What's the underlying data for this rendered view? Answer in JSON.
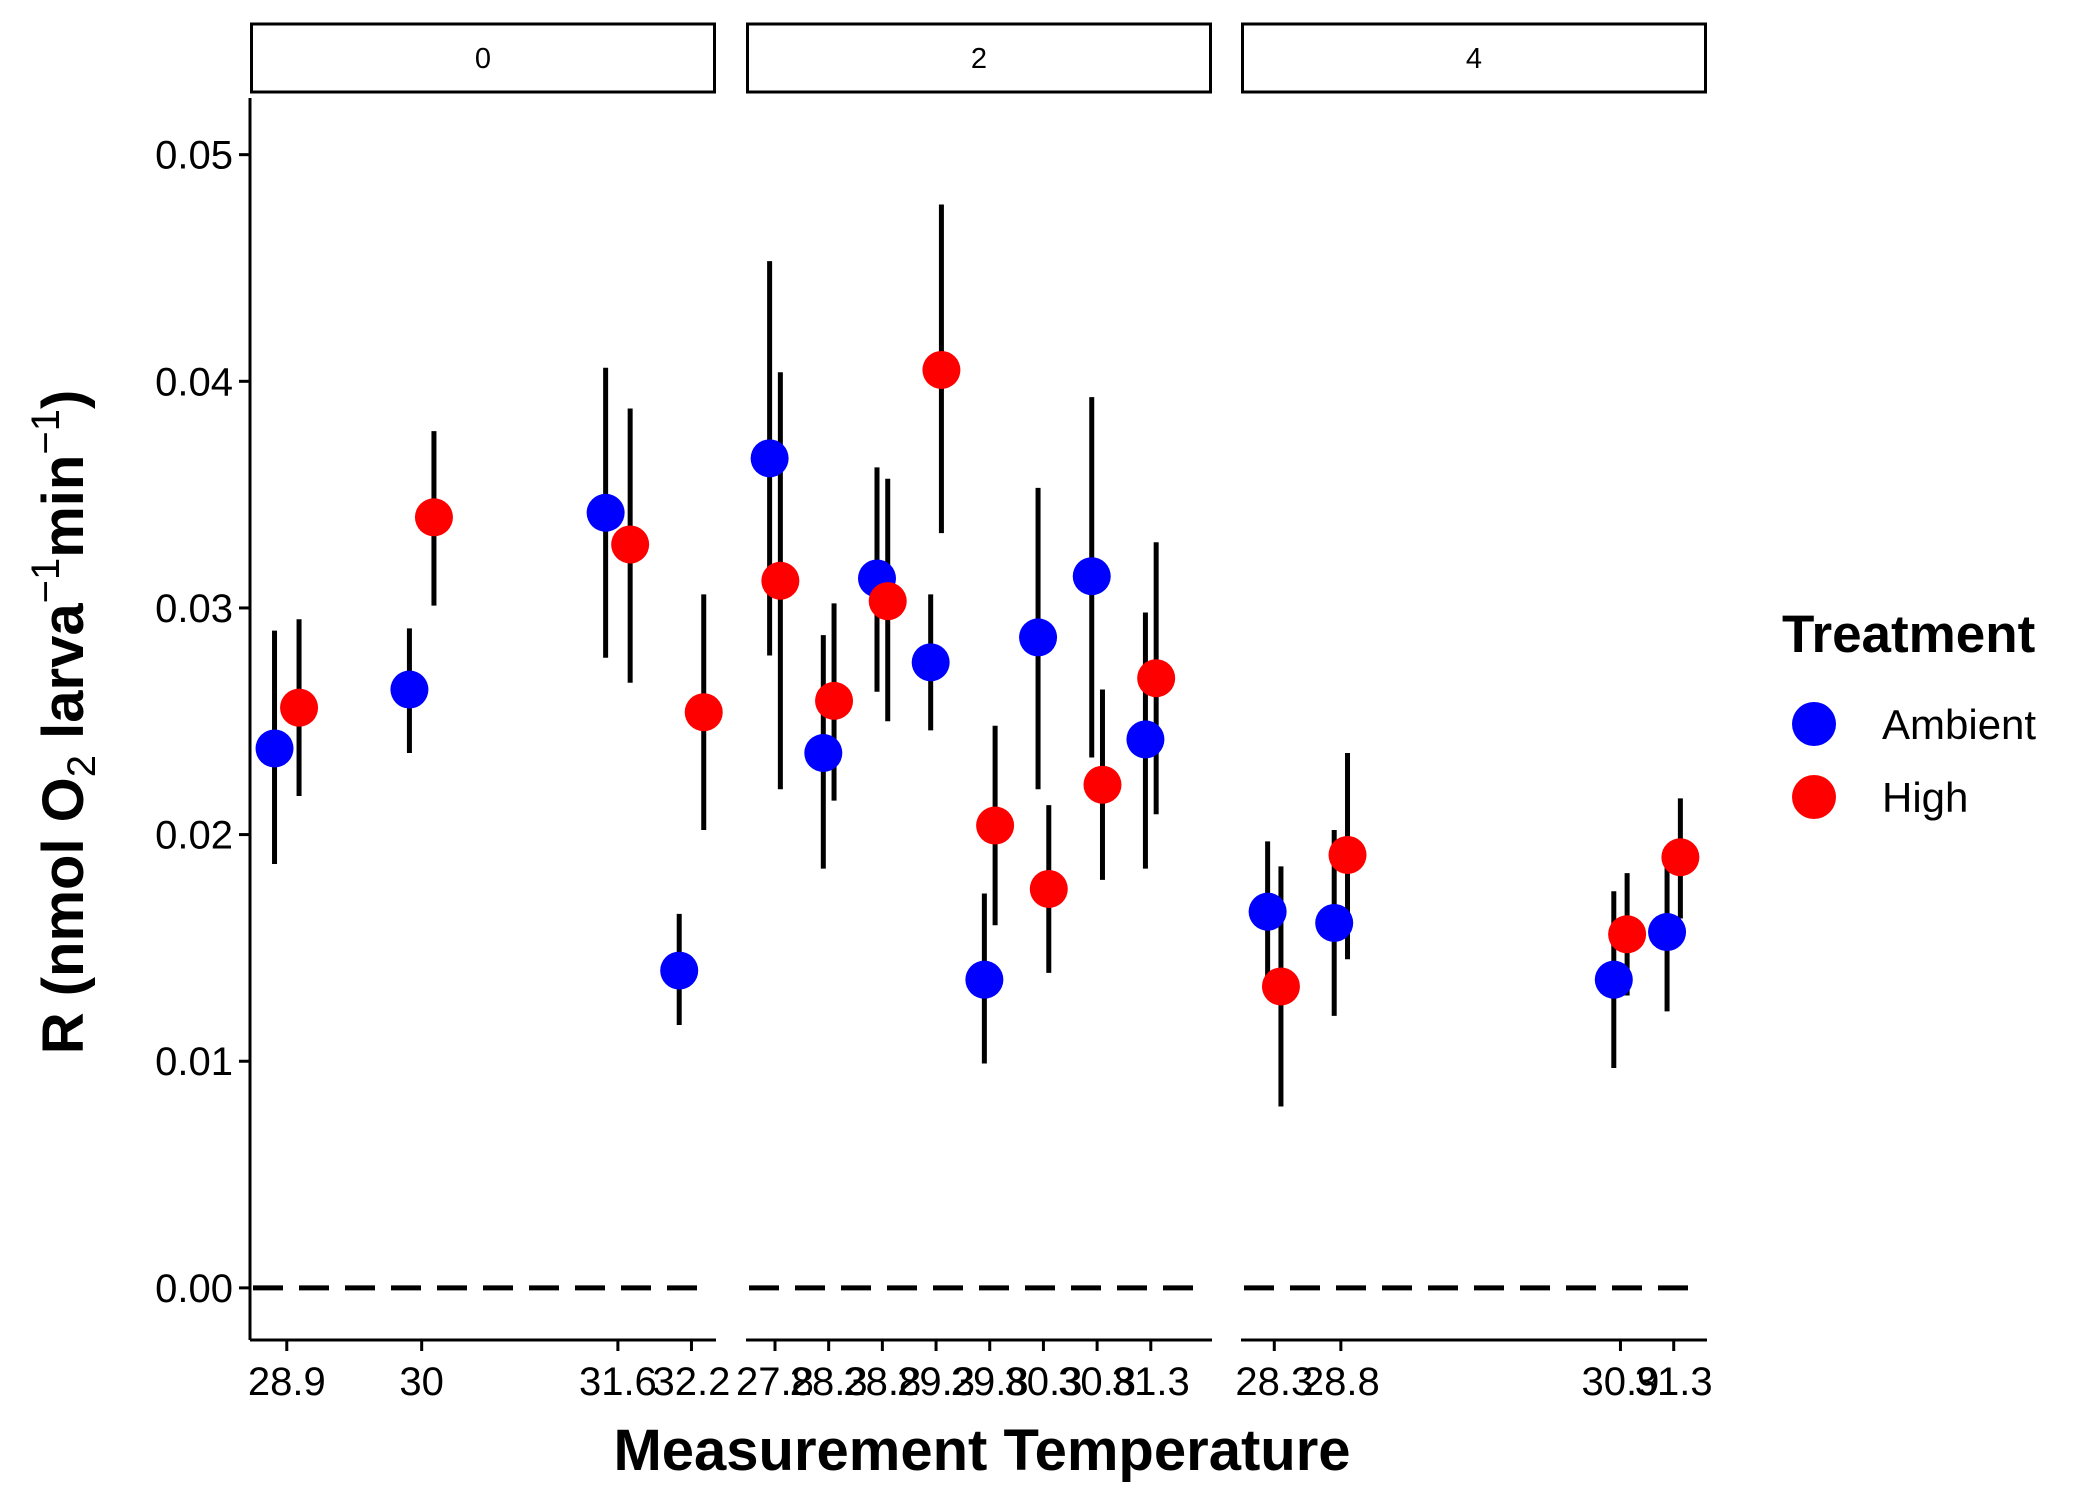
{
  "chart_data": {
    "type": "scatter",
    "xlabel": "Measurement Temperature",
    "ylabel": {
      "prefix": "R (nmol O",
      "o2_subscript": "2",
      "mid": " larva",
      "larva_superscript": "−1",
      "min_text": "min",
      "min_superscript": "−1",
      "suffix": ")"
    },
    "ylim": [
      -0.0023,
      0.0525
    ],
    "y_ticks": [
      "0.00",
      "0.01",
      "0.02",
      "0.03",
      "0.04",
      "0.05"
    ],
    "y_tick_values": [
      0,
      0.01,
      0.02,
      0.03,
      0.04,
      0.05
    ],
    "reference_line": {
      "y": 0,
      "style": "dashed"
    },
    "grid": false,
    "legend": {
      "title": "Treatment",
      "position": "right",
      "entries": [
        {
          "label": "Ambient",
          "color": "#0000ff"
        },
        {
          "label": "High",
          "color": "#ff0000"
        }
      ]
    },
    "series_colors": {
      "Ambient": "#0000ff",
      "High": "#ff0000"
    },
    "facets": [
      {
        "label": "0",
        "xlim": [
          28.6,
          32.4
        ],
        "x_ticks": [
          28.9,
          30,
          31.6,
          32.2
        ],
        "x_tick_labels": [
          "28.9",
          "30",
          "31.6",
          "32.2"
        ],
        "points": [
          {
            "treatment": "Ambient",
            "x": 28.8,
            "y": 0.0238,
            "ymin": 0.0187,
            "ymax": 0.029
          },
          {
            "treatment": "High",
            "x": 29.0,
            "y": 0.0256,
            "ymin": 0.0217,
            "ymax": 0.0295
          },
          {
            "treatment": "Ambient",
            "x": 29.9,
            "y": 0.0264,
            "ymin": 0.0236,
            "ymax": 0.0291
          },
          {
            "treatment": "High",
            "x": 30.1,
            "y": 0.034,
            "ymin": 0.0301,
            "ymax": 0.0378
          },
          {
            "treatment": "Ambient",
            "x": 31.5,
            "y": 0.0342,
            "ymin": 0.0278,
            "ymax": 0.0406
          },
          {
            "treatment": "High",
            "x": 31.7,
            "y": 0.0328,
            "ymin": 0.0267,
            "ymax": 0.0388
          },
          {
            "treatment": "Ambient",
            "x": 32.1,
            "y": 0.014,
            "ymin": 0.0116,
            "ymax": 0.0165
          },
          {
            "treatment": "High",
            "x": 32.3,
            "y": 0.0254,
            "ymin": 0.0202,
            "ymax": 0.0306
          }
        ]
      },
      {
        "label": "2",
        "xlim": [
          27.53,
          31.87
        ],
        "x_ticks": [
          27.8,
          28.3,
          28.8,
          29.3,
          29.8,
          30.3,
          30.8,
          31.3
        ],
        "x_tick_labels": [
          "27.8",
          "28.3",
          "28.8",
          "29.3",
          "29.8",
          "30.3",
          "30.8",
          "31.3"
        ],
        "x_tick_labels_visible": [
          "27.8",
          "28.3",
          "28.8",
          "29.3",
          "29.8",
          "30.3",
          "30.8",
          "31.3"
        ],
        "points": [
          {
            "treatment": "Ambient",
            "x": 27.75,
            "y": 0.0366,
            "ymin": 0.0279,
            "ymax": 0.0453
          },
          {
            "treatment": "High",
            "x": 27.85,
            "y": 0.0312,
            "ymin": 0.022,
            "ymax": 0.0404
          },
          {
            "treatment": "Ambient",
            "x": 28.25,
            "y": 0.0236,
            "ymin": 0.0185,
            "ymax": 0.0288
          },
          {
            "treatment": "High",
            "x": 28.35,
            "y": 0.0259,
            "ymin": 0.0215,
            "ymax": 0.0302
          },
          {
            "treatment": "Ambient",
            "x": 28.75,
            "y": 0.0313,
            "ymin": 0.0263,
            "ymax": 0.0362
          },
          {
            "treatment": "High",
            "x": 28.85,
            "y": 0.0303,
            "ymin": 0.025,
            "ymax": 0.0357
          },
          {
            "treatment": "Ambient",
            "x": 29.25,
            "y": 0.0276,
            "ymin": 0.0246,
            "ymax": 0.0306
          },
          {
            "treatment": "High",
            "x": 29.35,
            "y": 0.0405,
            "ymin": 0.0333,
            "ymax": 0.0478
          },
          {
            "treatment": "Ambient",
            "x": 29.75,
            "y": 0.0136,
            "ymin": 0.0099,
            "ymax": 0.0174
          },
          {
            "treatment": "High",
            "x": 29.85,
            "y": 0.0204,
            "ymin": 0.016,
            "ymax": 0.0248
          },
          {
            "treatment": "Ambient",
            "x": 30.25,
            "y": 0.0287,
            "ymin": 0.022,
            "ymax": 0.0353
          },
          {
            "treatment": "High",
            "x": 30.35,
            "y": 0.0176,
            "ymin": 0.0139,
            "ymax": 0.0213
          },
          {
            "treatment": "Ambient",
            "x": 30.75,
            "y": 0.0314,
            "ymin": 0.0234,
            "ymax": 0.0393
          },
          {
            "treatment": "High",
            "x": 30.85,
            "y": 0.0222,
            "ymin": 0.018,
            "ymax": 0.0264
          },
          {
            "treatment": "Ambient",
            "x": 31.25,
            "y": 0.0242,
            "ymin": 0.0185,
            "ymax": 0.0298
          },
          {
            "treatment": "High",
            "x": 31.35,
            "y": 0.0269,
            "ymin": 0.0209,
            "ymax": 0.0329
          }
        ]
      },
      {
        "label": "4",
        "xlim": [
          28.05,
          31.55
        ],
        "x_ticks": [
          28.3,
          28.8,
          30.9,
          31.3
        ],
        "x_tick_labels": [
          "28.3",
          "28.8",
          "30.9",
          "31.3"
        ],
        "points": [
          {
            "treatment": "Ambient",
            "x": 28.25,
            "y": 0.0166,
            "ymin": 0.0136,
            "ymax": 0.0197
          },
          {
            "treatment": "High",
            "x": 28.35,
            "y": 0.0133,
            "ymin": 0.008,
            "ymax": 0.0186
          },
          {
            "treatment": "Ambient",
            "x": 28.75,
            "y": 0.0161,
            "ymin": 0.012,
            "ymax": 0.0202
          },
          {
            "treatment": "High",
            "x": 28.85,
            "y": 0.0191,
            "ymin": 0.0145,
            "ymax": 0.0236
          },
          {
            "treatment": "Ambient",
            "x": 30.85,
            "y": 0.0136,
            "ymin": 0.0097,
            "ymax": 0.0175
          },
          {
            "treatment": "High",
            "x": 30.95,
            "y": 0.0156,
            "ymin": 0.0129,
            "ymax": 0.0183
          },
          {
            "treatment": "Ambient",
            "x": 31.25,
            "y": 0.0157,
            "ymin": 0.0122,
            "ymax": 0.0191
          },
          {
            "treatment": "High",
            "x": 31.35,
            "y": 0.019,
            "ymin": 0.0163,
            "ymax": 0.0216
          }
        ]
      }
    ]
  }
}
